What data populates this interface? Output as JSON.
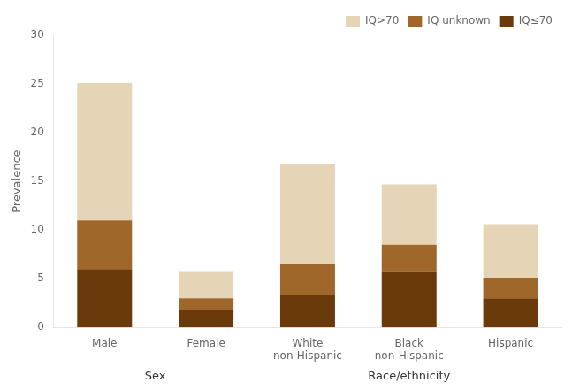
{
  "chart_data": {
    "type": "bar",
    "stacked": true,
    "categories": [
      "Male",
      "Female",
      "White\nnon-Hispanic",
      "Black\nnon-Hispanic",
      "Hispanic"
    ],
    "series": [
      {
        "name": "IQ≤70",
        "color": "#6B3A0A",
        "values": [
          6.0,
          1.8,
          3.3,
          5.7,
          3.0
        ]
      },
      {
        "name": "IQ unknown",
        "color": "#A0672A",
        "values": [
          5.0,
          1.2,
          3.2,
          2.8,
          2.1
        ]
      },
      {
        "name": "IQ>70",
        "color": "#E5D4B5",
        "values": [
          14.1,
          2.7,
          10.3,
          6.2,
          5.5
        ]
      }
    ],
    "ylabel": "Prevalence",
    "ylim": [
      0,
      30
    ],
    "yticks": [
      0,
      5,
      10,
      15,
      20,
      25,
      30
    ],
    "grid": false,
    "legend": "upper right",
    "annotations": [
      {
        "text": "Sex",
        "categories": [
          "Male",
          "Female"
        ]
      },
      {
        "text": "Race/ethnicity",
        "categories": [
          "White\nnon-Hispanic",
          "Black\nnon-Hispanic",
          "Hispanic"
        ]
      }
    ]
  }
}
